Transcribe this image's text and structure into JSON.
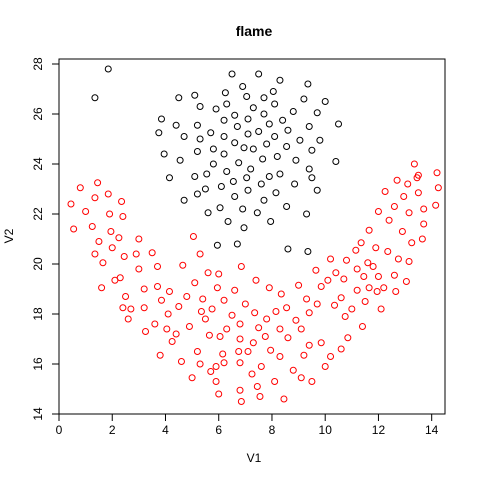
{
  "chart_data": {
    "type": "scatter",
    "title": "flame",
    "xlabel": "V1",
    "ylabel": "V2",
    "xlim": [
      0,
      14.5
    ],
    "ylim": [
      14,
      28.2
    ],
    "xticks": [
      0,
      2,
      4,
      6,
      8,
      10,
      12,
      14
    ],
    "yticks": [
      14,
      16,
      18,
      20,
      22,
      24,
      26,
      28
    ],
    "colors": {
      "cluster1": "#000000",
      "cluster2": "#ff0000"
    },
    "series": [
      {
        "color": "#000000",
        "points": [
          [
            1.85,
            27.8
          ],
          [
            1.35,
            26.65
          ],
          [
            6.5,
            27.6
          ],
          [
            7.5,
            27.6
          ],
          [
            8.3,
            27.35
          ],
          [
            9.35,
            27.2
          ],
          [
            6.9,
            27.1
          ],
          [
            7.05,
            26.7
          ],
          [
            8.05,
            26.9
          ],
          [
            6.25,
            26.85
          ],
          [
            5.1,
            26.75
          ],
          [
            4.5,
            26.65
          ],
          [
            7.7,
            26.65
          ],
          [
            9.2,
            26.6
          ],
          [
            10,
            26.5
          ],
          [
            6.3,
            26.4
          ],
          [
            5.9,
            26.2
          ],
          [
            8.1,
            26.4
          ],
          [
            7.3,
            26.25
          ],
          [
            5.3,
            26.3
          ],
          [
            8.8,
            26.1
          ],
          [
            9.7,
            26.05
          ],
          [
            6.6,
            25.95
          ],
          [
            7.7,
            26
          ],
          [
            3.85,
            25.8
          ],
          [
            7.1,
            25.8
          ],
          [
            8.4,
            25.75
          ],
          [
            9.4,
            25.5
          ],
          [
            6.2,
            25.75
          ],
          [
            4.4,
            25.55
          ],
          [
            5.2,
            25.55
          ],
          [
            7.9,
            25.6
          ],
          [
            10.5,
            25.6
          ],
          [
            6.7,
            25.5
          ],
          [
            7.5,
            25.3
          ],
          [
            8.6,
            25.35
          ],
          [
            5.7,
            25.25
          ],
          [
            3.75,
            25.25
          ],
          [
            7.1,
            25.2
          ],
          [
            6.2,
            25.1
          ],
          [
            8.1,
            25.1
          ],
          [
            4.7,
            25.1
          ],
          [
            5.3,
            25
          ],
          [
            9.8,
            24.95
          ],
          [
            9.05,
            24.95
          ],
          [
            7.8,
            24.8
          ],
          [
            6.6,
            24.85
          ],
          [
            8.55,
            24.7
          ],
          [
            7.3,
            24.6
          ],
          [
            5.8,
            24.6
          ],
          [
            6.95,
            24.65
          ],
          [
            9.5,
            24.55
          ],
          [
            5.2,
            24.5
          ],
          [
            6.2,
            24.4
          ],
          [
            3.95,
            24.4
          ],
          [
            8.2,
            24.3
          ],
          [
            8.9,
            24.15
          ],
          [
            7.65,
            24.2
          ],
          [
            5.8,
            24
          ],
          [
            4.55,
            24.15
          ],
          [
            10.4,
            24.1
          ],
          [
            6.75,
            24.05
          ],
          [
            7.2,
            23.8
          ],
          [
            6.3,
            23.7
          ],
          [
            9.4,
            23.8
          ],
          [
            8.3,
            23.6
          ],
          [
            5.55,
            23.6
          ],
          [
            7.9,
            23.5
          ],
          [
            7.05,
            23.45
          ],
          [
            5.1,
            23.5
          ],
          [
            9.5,
            23.45
          ],
          [
            4.15,
            23.45
          ],
          [
            6.55,
            23.3
          ],
          [
            7.6,
            23.2
          ],
          [
            8.85,
            23.2
          ],
          [
            6.1,
            23.1
          ],
          [
            5.5,
            23
          ],
          [
            7.1,
            22.95
          ],
          [
            9.7,
            22.95
          ],
          [
            8.15,
            22.85
          ],
          [
            6.6,
            22.7
          ],
          [
            4.7,
            22.55
          ],
          [
            7.7,
            22.55
          ],
          [
            5.2,
            22.8
          ],
          [
            6.05,
            22.25
          ],
          [
            8.55,
            22.3
          ],
          [
            6.9,
            22.2
          ],
          [
            7.45,
            22.05
          ],
          [
            9.3,
            22
          ],
          [
            5.6,
            22.05
          ],
          [
            6.35,
            21.7
          ],
          [
            7.95,
            21.7
          ],
          [
            6.95,
            21.45
          ],
          [
            6.7,
            20.8
          ],
          [
            5.95,
            20.75
          ],
          [
            8.6,
            20.6
          ],
          [
            9.35,
            20.5
          ]
        ]
      },
      {
        "color": "#ff0000",
        "points": [
          [
            0.45,
            22.4
          ],
          [
            0.55,
            21.4
          ],
          [
            0.8,
            23.05
          ],
          [
            1,
            22.1
          ],
          [
            1.35,
            22.65
          ],
          [
            1.45,
            23.25
          ],
          [
            1.25,
            21.5
          ],
          [
            1.9,
            22
          ],
          [
            2.35,
            22.5
          ],
          [
            1.5,
            20.9
          ],
          [
            1.35,
            20.4
          ],
          [
            1.95,
            21.3
          ],
          [
            1.85,
            22.8
          ],
          [
            2.4,
            21.9
          ],
          [
            2.25,
            21.05
          ],
          [
            2.45,
            20.3
          ],
          [
            2,
            20.65
          ],
          [
            3,
            21
          ],
          [
            1.65,
            20.05
          ],
          [
            2.9,
            20.4
          ],
          [
            3.5,
            20.45
          ],
          [
            3,
            19.8
          ],
          [
            2.3,
            19.45
          ],
          [
            3.7,
            19.9
          ],
          [
            2.1,
            19.35
          ],
          [
            3.7,
            19.1
          ],
          [
            1.6,
            19.05
          ],
          [
            3.2,
            19
          ],
          [
            2.5,
            18.7
          ],
          [
            4.15,
            18.9
          ],
          [
            3.85,
            18.55
          ],
          [
            2.7,
            18.2
          ],
          [
            3.2,
            18.25
          ],
          [
            2.4,
            18.25
          ],
          [
            4.5,
            18.3
          ],
          [
            4.1,
            18
          ],
          [
            2.6,
            17.8
          ],
          [
            3.6,
            17.6
          ],
          [
            4.05,
            17.4
          ],
          [
            3.25,
            17.3
          ],
          [
            4.9,
            17.5
          ],
          [
            4.4,
            17.2
          ],
          [
            4.25,
            16.9
          ],
          [
            3.8,
            16.35
          ],
          [
            4.6,
            16.1
          ],
          [
            5.2,
            16.5
          ],
          [
            5.3,
            16
          ],
          [
            5.7,
            15.7
          ],
          [
            5,
            15.45
          ],
          [
            5.9,
            15.3
          ],
          [
            6,
            14.8
          ],
          [
            6.8,
            14.95
          ],
          [
            6.85,
            14.5
          ],
          [
            7.45,
            15.1
          ],
          [
            7.55,
            14.7
          ],
          [
            8.45,
            14.6
          ],
          [
            8.1,
            15.3
          ],
          [
            9.1,
            15.45
          ],
          [
            9.5,
            15.3
          ],
          [
            8.8,
            15.75
          ],
          [
            4.65,
            19.95
          ],
          [
            5.1,
            19.25
          ],
          [
            5.6,
            19.65
          ],
          [
            5.05,
            21.1
          ],
          [
            5.3,
            20.4
          ],
          [
            6,
            19.6
          ],
          [
            5.95,
            19.05
          ],
          [
            6.2,
            18.55
          ],
          [
            6.6,
            18.95
          ],
          [
            6.85,
            19.9
          ],
          [
            7,
            18.4
          ],
          [
            7.4,
            19.35
          ],
          [
            7.9,
            19.05
          ],
          [
            7.35,
            18.05
          ],
          [
            6.8,
            17.6
          ],
          [
            6.5,
            17.95
          ],
          [
            7.8,
            17.8
          ],
          [
            8.15,
            18.1
          ],
          [
            8.35,
            18.8
          ],
          [
            8.55,
            18.25
          ],
          [
            9,
            19.15
          ],
          [
            9.3,
            18.6
          ],
          [
            9.4,
            18.05
          ],
          [
            9.7,
            18.4
          ],
          [
            9.85,
            19.1
          ],
          [
            9.65,
            19.75
          ],
          [
            10.1,
            19.35
          ],
          [
            10.4,
            19.65
          ],
          [
            10.35,
            18.35
          ],
          [
            10.6,
            18.65
          ],
          [
            10.7,
            19.4
          ],
          [
            10.8,
            20.15
          ],
          [
            11.15,
            20.55
          ],
          [
            11.2,
            19.8
          ],
          [
            11.2,
            18.95
          ],
          [
            11,
            18.2
          ],
          [
            10.75,
            17.9
          ],
          [
            11.5,
            18.5
          ],
          [
            11.65,
            19.05
          ],
          [
            11.4,
            17.5
          ],
          [
            10.85,
            17.05
          ],
          [
            10.6,
            16.6
          ],
          [
            10.2,
            16.3
          ],
          [
            10,
            15.9
          ],
          [
            9.85,
            16.85
          ],
          [
            9.4,
            16.75
          ],
          [
            9.2,
            16.35
          ],
          [
            9.1,
            17.4
          ],
          [
            8.6,
            17.05
          ],
          [
            8.9,
            17.75
          ],
          [
            8.3,
            16.3
          ],
          [
            7.95,
            16.55
          ],
          [
            8.3,
            17.4
          ],
          [
            7.75,
            17.1
          ],
          [
            7.5,
            17.45
          ],
          [
            7.3,
            16.85
          ],
          [
            7.1,
            16.5
          ],
          [
            7.6,
            15.9
          ],
          [
            7.25,
            15.6
          ],
          [
            6.8,
            16.05
          ],
          [
            6.8,
            17
          ],
          [
            6.15,
            16.4
          ],
          [
            6.05,
            17.1
          ],
          [
            5.65,
            17.15
          ],
          [
            6.3,
            17.4
          ],
          [
            5.5,
            17.8
          ],
          [
            5.75,
            18.2
          ],
          [
            5.35,
            18.1
          ],
          [
            5.4,
            18.6
          ],
          [
            4.8,
            18.7
          ],
          [
            6.2,
            16.05
          ],
          [
            5.9,
            15.9
          ],
          [
            6.75,
            16.5
          ],
          [
            12.7,
            23.35
          ],
          [
            12.25,
            22.9
          ],
          [
            13.35,
            24
          ],
          [
            13.1,
            23.2
          ],
          [
            13.5,
            23.55
          ],
          [
            14.2,
            23.65
          ],
          [
            14.25,
            23.05
          ],
          [
            12.95,
            22.7
          ],
          [
            13.5,
            22.85
          ],
          [
            12,
            22.1
          ],
          [
            12.6,
            22.3
          ],
          [
            13.15,
            22.05
          ],
          [
            14.15,
            22.35
          ],
          [
            13.7,
            22.2
          ],
          [
            11.65,
            21.35
          ],
          [
            12.4,
            21.75
          ],
          [
            12.9,
            21.3
          ],
          [
            11.35,
            20.85
          ],
          [
            11.9,
            20.65
          ],
          [
            12.35,
            20.5
          ],
          [
            12.75,
            20.2
          ],
          [
            13.25,
            20.85
          ],
          [
            13.15,
            20.1
          ],
          [
            13.7,
            21.6
          ],
          [
            13.65,
            21
          ],
          [
            11.6,
            20.05
          ],
          [
            12,
            19.5
          ],
          [
            12.6,
            19.55
          ],
          [
            13.05,
            19.3
          ],
          [
            11.95,
            18.9
          ],
          [
            12.65,
            18.9
          ],
          [
            12.1,
            18.2
          ],
          [
            11.8,
            19.9
          ],
          [
            11.45,
            19.5
          ],
          [
            12.2,
            19.05
          ],
          [
            13.45,
            23.45
          ],
          [
            10.2,
            20.2
          ]
        ]
      }
    ]
  }
}
